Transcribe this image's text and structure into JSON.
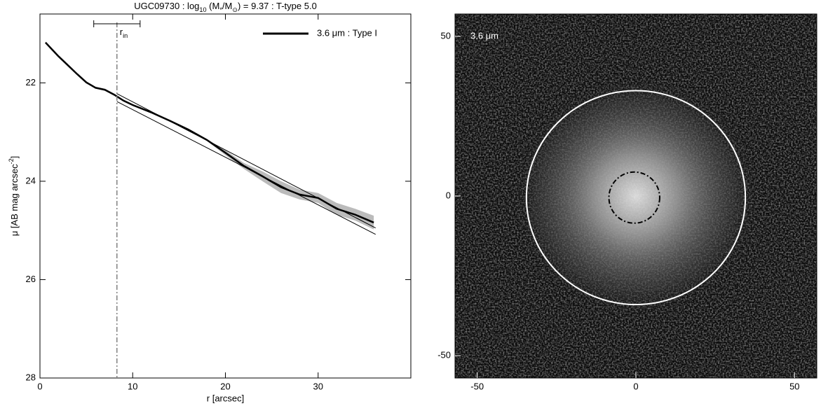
{
  "chart_data": [
    {
      "type": "line",
      "title_parts": [
        {
          "text": "UGC09730 : log"
        },
        {
          "text": "10",
          "sub": true
        },
        {
          "text": " (M"
        },
        {
          "text": "*",
          "sub": true
        },
        {
          "text": "/M"
        },
        {
          "text": "⊙",
          "sub": true
        },
        {
          "text": ") = 9.37 : T-type 5.0"
        }
      ],
      "xlabel": "r [arcsec]",
      "ylabel_parts": [
        {
          "text": "μ [AB mag arcsec"
        },
        {
          "text": "-2",
          "sup": true
        },
        {
          "text": "]"
        }
      ],
      "xlim": [
        0,
        40
      ],
      "ylim": [
        20.6,
        28
      ],
      "y_inverted": true,
      "xticks": [
        0,
        10,
        20,
        30
      ],
      "yticks": [
        22,
        24,
        26,
        28
      ],
      "legend": "upper right",
      "series": [
        {
          "name": "3.6 μm : Type I",
          "color": "#000000",
          "band_color": "#bbbbbb",
          "x": [
            0.6,
            2,
            3,
            4,
            5,
            6,
            7,
            8,
            9,
            10,
            12,
            14,
            16,
            18,
            20,
            22,
            24,
            26,
            28,
            30,
            32,
            34,
            36
          ],
          "values": [
            21.18,
            21.46,
            21.64,
            21.82,
            21.99,
            22.1,
            22.14,
            22.24,
            22.36,
            22.45,
            22.6,
            22.77,
            22.95,
            23.16,
            23.42,
            23.69,
            23.9,
            24.12,
            24.27,
            24.34,
            24.56,
            24.68,
            24.84
          ],
          "errors": [
            0.02,
            0.02,
            0.02,
            0.02,
            0.02,
            0.02,
            0.02,
            0.02,
            0.02,
            0.02,
            0.02,
            0.02,
            0.02,
            0.02,
            0.05,
            0.06,
            0.1,
            0.12,
            0.1,
            0.1,
            0.12,
            0.12,
            0.14
          ]
        }
      ],
      "fits": [
        {
          "x": [
            8.3,
            36.2
          ],
          "values": [
            22.22,
            24.95
          ]
        },
        {
          "x": [
            8.3,
            36.2
          ],
          "values": [
            22.38,
            25.08
          ]
        }
      ],
      "annotation": {
        "parts": [
          {
            "text": "r"
          },
          {
            "text": "in",
            "sub": true
          }
        ],
        "x": 8.3,
        "range": [
          5.8,
          10.8
        ],
        "color": "#808080"
      }
    },
    {
      "type": "image",
      "label": "3.6 μm",
      "xlim": [
        -57,
        57
      ],
      "ylim": [
        -57,
        57
      ],
      "xticks": [
        -50,
        0,
        50
      ],
      "yticks": [
        -50,
        0,
        50
      ],
      "ellipses": [
        {
          "x": 0,
          "y": -0.5,
          "rx": 34.5,
          "ry": 33.5,
          "color": "#ffffff"
        },
        {
          "x": -0.5,
          "y": -0.5,
          "rx": 8,
          "ry": 8,
          "color": "#000000",
          "dash": "dashdot"
        }
      ]
    }
  ]
}
